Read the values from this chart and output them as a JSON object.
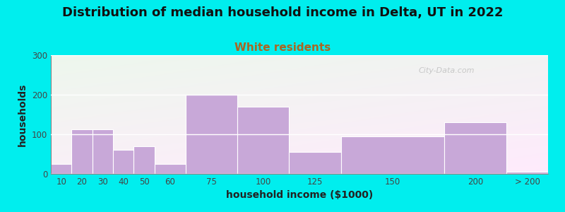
{
  "title": "Distribution of median household income in Delta, UT in 2022",
  "subtitle": "White residents",
  "xlabel": "household income ($1000)",
  "ylabel": "households",
  "bar_color": "#c8a8d8",
  "bg_color": "#00eeee",
  "plot_bg_top_left": "#e8f5e0",
  "plot_bg_top_right": "#f0f0f5",
  "plot_bg_bottom": "#f8eef8",
  "title_fontsize": 13,
  "subtitle_fontsize": 11,
  "subtitle_color": "#aa6622",
  "axis_label_fontsize": 10,
  "tick_fontsize": 8.5,
  "watermark": "City-Data.com",
  "bar_labels": [
    "10",
    "20",
    "30",
    "40",
    "50",
    "60",
    "75",
    "100",
    "125",
    "150",
    "200",
    "> 200"
  ],
  "bar_heights": [
    25,
    113,
    113,
    60,
    70,
    25,
    200,
    170,
    55,
    95,
    130,
    5
  ],
  "bar_lefts": [
    10,
    20,
    30,
    40,
    50,
    60,
    75,
    100,
    125,
    150,
    200,
    230
  ],
  "bar_widths": [
    10,
    10,
    10,
    10,
    10,
    15,
    25,
    25,
    25,
    50,
    30,
    20
  ],
  "ylim": [
    0,
    300
  ],
  "yticks": [
    0,
    100,
    200,
    300
  ]
}
